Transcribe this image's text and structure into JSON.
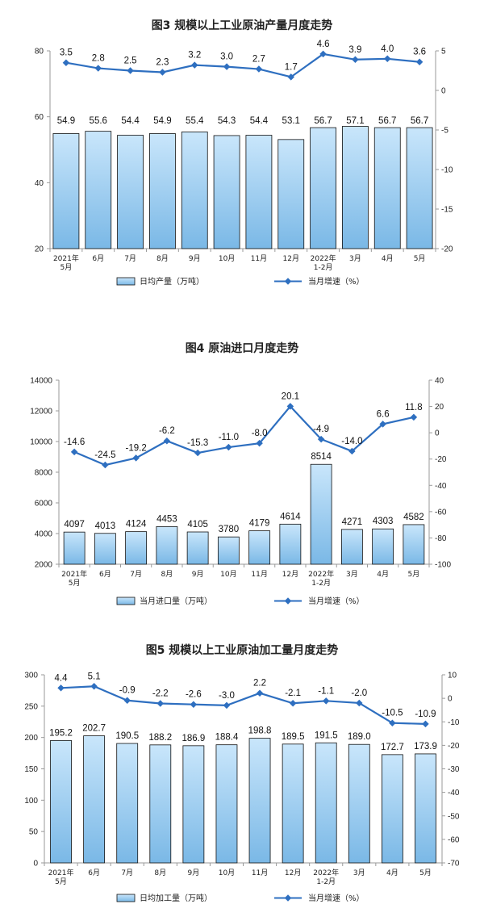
{
  "chart_data": [
    {
      "type": "bar+line",
      "title": "图3  规模以上工业原油产量月度走势",
      "categories": [
        [
          "2021年",
          "5月"
        ],
        [
          "6月"
        ],
        [
          "7月"
        ],
        [
          "8月"
        ],
        [
          "9月"
        ],
        [
          "10月"
        ],
        [
          "11月"
        ],
        [
          "12月"
        ],
        [
          "2022年",
          "1-2月"
        ],
        [
          "3月"
        ],
        [
          "4月"
        ],
        [
          "5月"
        ]
      ],
      "bar_series": {
        "name": "日均产量（万吨）",
        "values": [
          54.9,
          55.6,
          54.4,
          54.9,
          55.4,
          54.3,
          54.4,
          53.1,
          56.7,
          57.1,
          56.7,
          56.7
        ],
        "labels": [
          "54.9",
          "55.6",
          "54.4",
          "54.9",
          "55.4",
          "54.3",
          "54.4",
          "53.1",
          "56.7",
          "57.1",
          "56.7",
          "56.7"
        ]
      },
      "line_series": {
        "name": "当月增速（%）",
        "values": [
          3.5,
          2.8,
          2.5,
          2.3,
          3.2,
          3.0,
          2.7,
          1.7,
          4.6,
          3.9,
          4.0,
          3.6
        ],
        "labels": [
          "3.5",
          "2.8",
          "2.5",
          "2.3",
          "3.2",
          "3.0",
          "2.7",
          "1.7",
          "4.6",
          "3.9",
          "4.0",
          "3.6"
        ]
      },
      "y_left": {
        "range": [
          20,
          80
        ],
        "ticks": [
          20,
          40,
          60,
          80
        ]
      },
      "y_right": {
        "range": [
          -20,
          5
        ],
        "ticks": [
          5,
          0,
          -5,
          -10,
          -15,
          -20
        ]
      },
      "legend_position": "bottom"
    },
    {
      "type": "bar+line",
      "title": "图4  原油进口月度走势",
      "categories": [
        [
          "2021年",
          "5月"
        ],
        [
          "6月"
        ],
        [
          "7月"
        ],
        [
          "8月"
        ],
        [
          "9月"
        ],
        [
          "10月"
        ],
        [
          "11月"
        ],
        [
          "12月"
        ],
        [
          "2022年",
          "1-2月"
        ],
        [
          "3月"
        ],
        [
          "4月"
        ],
        [
          "5月"
        ]
      ],
      "bar_series": {
        "name": "当月进口量（万吨）",
        "values": [
          4097,
          4013,
          4124,
          4453,
          4105,
          3780,
          4179,
          4614,
          8514,
          4271,
          4303,
          4582
        ],
        "labels": [
          "4097",
          "4013",
          "4124",
          "4453",
          "4105",
          "3780",
          "4179",
          "4614",
          "8514",
          "4271",
          "4303",
          "4582"
        ]
      },
      "line_series": {
        "name": "当月增速（%）",
        "values": [
          -14.6,
          -24.5,
          -19.2,
          -6.2,
          -15.3,
          -11.0,
          -8.0,
          20.1,
          -4.9,
          -14.0,
          6.6,
          11.8
        ],
        "labels": [
          "-14.6",
          "-24.5",
          "-19.2",
          "-6.2",
          "-15.3",
          "-11.0",
          "-8.0",
          "20.1",
          "-4.9",
          "-14.0",
          "6.6",
          "11.8"
        ]
      },
      "y_left": {
        "range": [
          2000,
          14000
        ],
        "ticks": [
          2000,
          4000,
          6000,
          8000,
          10000,
          12000,
          14000
        ]
      },
      "y_right": {
        "range": [
          -100,
          40
        ],
        "ticks": [
          40,
          20,
          0,
          -20,
          -40,
          -60,
          -80,
          -100
        ]
      },
      "legend_position": "bottom"
    },
    {
      "type": "bar+line",
      "title": "图5  规模以上工业原油加工量月度走势",
      "categories": [
        [
          "2021年",
          "5月"
        ],
        [
          "6月"
        ],
        [
          "7月"
        ],
        [
          "8月"
        ],
        [
          "9月"
        ],
        [
          "10月"
        ],
        [
          "11月"
        ],
        [
          "12月"
        ],
        [
          "2022年",
          "1-2月"
        ],
        [
          "3月"
        ],
        [
          "4月"
        ],
        [
          "5月"
        ]
      ],
      "bar_series": {
        "name": "日均加工量（万吨）",
        "values": [
          195.2,
          202.7,
          190.5,
          188.2,
          186.9,
          188.4,
          198.8,
          189.5,
          191.5,
          189.0,
          172.7,
          173.9
        ],
        "labels": [
          "195.2",
          "202.7",
          "190.5",
          "188.2",
          "186.9",
          "188.4",
          "198.8",
          "189.5",
          "191.5",
          "189.0",
          "172.7",
          "173.9"
        ]
      },
      "line_series": {
        "name": "当月增速（%）",
        "values": [
          4.4,
          5.1,
          -0.9,
          -2.2,
          -2.6,
          -3.0,
          2.2,
          -2.1,
          -1.1,
          -2.0,
          -10.5,
          -10.9
        ],
        "labels": [
          "4.4",
          "5.1",
          "-0.9",
          "-2.2",
          "-2.6",
          "-3.0",
          "2.2",
          "-2.1",
          "-1.1",
          "-2.0",
          "-10.5",
          "-10.9"
        ]
      },
      "y_left": {
        "range": [
          0,
          300
        ],
        "ticks": [
          0,
          50,
          100,
          150,
          200,
          250,
          300
        ]
      },
      "y_right": {
        "range": [
          -70,
          10
        ],
        "ticks": [
          10,
          0,
          -10,
          -20,
          -30,
          -40,
          -50,
          -60,
          -70
        ]
      },
      "legend_position": "bottom"
    }
  ],
  "colors": {
    "bar_fill_top": "#c9e6fb",
    "bar_fill_bottom": "#7ab8e6",
    "bar_stroke": "#111111",
    "line": "#2e6fc0",
    "axis": "#9a9a9a"
  }
}
